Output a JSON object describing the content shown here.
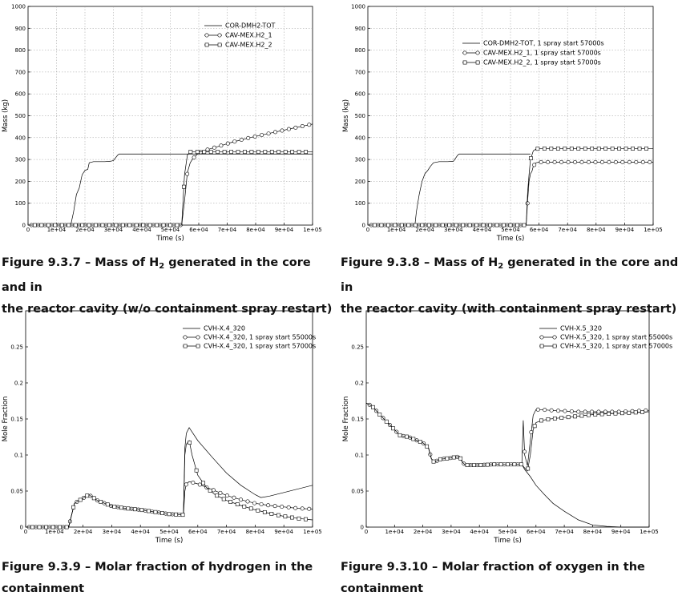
{
  "chart_data": [
    {
      "type": "line",
      "xlabel": "Time (s)",
      "ylabel": "Mass (kg)",
      "xlim": [
        0,
        100000
      ],
      "ylim": [
        0,
        1000
      ],
      "xticks": [
        0,
        10000,
        20000,
        30000,
        40000,
        50000,
        60000,
        70000,
        80000,
        90000,
        100000
      ],
      "xtick_labels": [
        "0",
        "1e+04",
        "2e+04",
        "3e+04",
        "4e+04",
        "5e+04",
        "6e+04",
        "7e+04",
        "8e+04",
        "9e+04",
        "1e+05"
      ],
      "yticks": [
        0,
        100,
        200,
        300,
        400,
        500,
        600,
        700,
        800,
        900,
        1000
      ],
      "ytick_labels": [
        "0",
        "100",
        "200",
        "300",
        "400",
        "500",
        "600",
        "700",
        "800",
        "900",
        "1000"
      ],
      "grid": true,
      "legend": "top-right",
      "series": [
        {
          "name": "COR-DMH2-TOT",
          "marker": "none",
          "x": [
            0,
            15000,
            16000,
            17000,
            18000,
            19000,
            20000,
            21000,
            21500,
            23000,
            25000,
            27000,
            29000,
            30000,
            31500,
            32000,
            34000,
            40000,
            60000,
            100000
          ],
          "y": [
            0,
            0,
            60,
            140,
            170,
            230,
            250,
            255,
            285,
            290,
            290,
            290,
            292,
            295,
            320,
            325,
            325,
            325,
            325,
            325
          ]
        },
        {
          "name": "CAV-MEX.H2_1",
          "marker": "circle",
          "x": [
            0,
            54000,
            55000,
            56000,
            57000,
            58000,
            60000,
            63000,
            67000,
            72000,
            78000,
            85000,
            92000,
            100000
          ],
          "y": [
            0,
            0,
            110,
            240,
            285,
            305,
            330,
            345,
            360,
            380,
            400,
            420,
            440,
            462
          ]
        },
        {
          "name": "CAV-MEX.H2_2",
          "marker": "square",
          "x": [
            0,
            54000,
            55000,
            56000,
            57000,
            58000,
            60000,
            65000,
            70000,
            80000,
            90000,
            100000
          ],
          "y": [
            0,
            0,
            230,
            320,
            335,
            335,
            335,
            335,
            335,
            335,
            335,
            335
          ]
        }
      ]
    },
    {
      "type": "line",
      "xlabel": "Time (s)",
      "ylabel": "Mass (kg)",
      "xlim": [
        0,
        100000
      ],
      "ylim": [
        0,
        1000
      ],
      "xticks": [
        0,
        10000,
        20000,
        30000,
        40000,
        50000,
        60000,
        70000,
        80000,
        90000,
        100000
      ],
      "xtick_labels": [
        "0",
        "1e+04",
        "2e+04",
        "3e+04",
        "4e+04",
        "5e+04",
        "6e+04",
        "7e+04",
        "8e+04",
        "9e+04",
        "1e+05"
      ],
      "yticks": [
        0,
        100,
        200,
        300,
        400,
        500,
        600,
        700,
        800,
        900,
        1000
      ],
      "ytick_labels": [
        "0",
        "100",
        "200",
        "300",
        "400",
        "500",
        "600",
        "700",
        "800",
        "900",
        "1000"
      ],
      "grid": true,
      "legend": "top-right",
      "series": [
        {
          "name": "COR-DMH2-TOT, 1 spray start 57000s",
          "marker": "none",
          "x": [
            0,
            16500,
            17000,
            18000,
            19000,
            20000,
            21000,
            22000,
            23000,
            25000,
            28000,
            30000,
            31500,
            32000,
            40000,
            57000
          ],
          "y": [
            0,
            0,
            60,
            140,
            200,
            235,
            250,
            270,
            285,
            290,
            290,
            292,
            320,
            325,
            325,
            325
          ]
        },
        {
          "name": "CAV-MEX.H2_1, 1 spray start 57000s",
          "marker": "circle",
          "x": [
            0,
            55500,
            56000,
            56500,
            57000,
            57500,
            58000,
            59000,
            60000,
            65000,
            70000,
            80000,
            90000,
            100000
          ],
          "y": [
            0,
            0,
            110,
            200,
            235,
            245,
            270,
            285,
            288,
            288,
            288,
            288,
            288,
            288
          ]
        },
        {
          "name": "CAV-MEX.H2_2, 1 spray start 57000s",
          "marker": "square",
          "x": [
            0,
            55500,
            56000,
            56500,
            57000,
            57500,
            58000,
            59000,
            60000,
            70000,
            80000,
            90000,
            100000
          ],
          "y": [
            0,
            0,
            150,
            230,
            300,
            320,
            340,
            348,
            350,
            350,
            350,
            350,
            350
          ]
        }
      ]
    },
    {
      "type": "line",
      "xlabel": "Time (s)",
      "ylabel": "Mole Fraction",
      "xlim": [
        0,
        100000
      ],
      "ylim": [
        0,
        0.3
      ],
      "xticks": [
        0,
        10000,
        20000,
        30000,
        40000,
        50000,
        60000,
        70000,
        80000,
        90000,
        100000
      ],
      "xtick_labels": [
        "0",
        "1e+04",
        "2e+04",
        "3e+04",
        "4e+04",
        "5e+04",
        "6e+04",
        "7e+04",
        "8e+04",
        "9e+04",
        "1e+05"
      ],
      "yticks": [
        0,
        0.05,
        0.1,
        0.15,
        0.2,
        0.25
      ],
      "ytick_labels": [
        "0",
        "0.05",
        "0.1",
        "0.15",
        "0.2",
        "0.25"
      ],
      "grid": false,
      "legend": "top-right",
      "series": [
        {
          "name": "CVH-X.4_320",
          "marker": "none",
          "x": [
            0,
            15000,
            17000,
            20000,
            22000,
            25000,
            30000,
            35000,
            40000,
            45000,
            50000,
            55000,
            55500,
            56000,
            57000,
            60000,
            65000,
            70000,
            75000,
            80000,
            82000,
            85000,
            90000,
            100000
          ],
          "y": [
            0,
            0,
            0.033,
            0.04,
            0.045,
            0.037,
            0.029,
            0.026,
            0.024,
            0.021,
            0.018,
            0.017,
            0.11,
            0.13,
            0.138,
            0.12,
            0.097,
            0.075,
            0.058,
            0.045,
            0.041,
            0.043,
            0.048,
            0.058
          ]
        },
        {
          "name": "CVH-X.4_320, 1 spray start 55000s",
          "marker": "circle",
          "x": [
            0,
            15000,
            17000,
            20000,
            22000,
            25000,
            30000,
            35000,
            40000,
            45000,
            50000,
            55000,
            55500,
            56000,
            57000,
            60000,
            65000,
            70000,
            75000,
            80000,
            85000,
            90000,
            95000,
            100000
          ],
          "y": [
            0,
            0,
            0.033,
            0.04,
            0.045,
            0.037,
            0.029,
            0.026,
            0.024,
            0.021,
            0.018,
            0.017,
            0.05,
            0.06,
            0.063,
            0.06,
            0.052,
            0.044,
            0.038,
            0.033,
            0.03,
            0.028,
            0.026,
            0.025
          ]
        },
        {
          "name": "CVH-X.4_320, 1 spray start 57000s",
          "marker": "square",
          "x": [
            0,
            15000,
            17000,
            20000,
            22000,
            25000,
            30000,
            35000,
            40000,
            45000,
            50000,
            55000,
            55500,
            56000,
            57000,
            58000,
            60000,
            63000,
            66000,
            70000,
            75000,
            80000,
            85000,
            90000,
            95000,
            100000
          ],
          "y": [
            0,
            0,
            0.033,
            0.04,
            0.045,
            0.037,
            0.029,
            0.026,
            0.024,
            0.021,
            0.018,
            0.017,
            0.1,
            0.115,
            0.12,
            0.1,
            0.072,
            0.055,
            0.045,
            0.037,
            0.03,
            0.024,
            0.019,
            0.015,
            0.012,
            0.01
          ]
        }
      ]
    },
    {
      "type": "line",
      "xlabel": "Time (s)",
      "ylabel": "Mole Fraction",
      "xlim": [
        0,
        100000
      ],
      "ylim": [
        0,
        0.3
      ],
      "xticks": [
        0,
        10000,
        20000,
        30000,
        40000,
        50000,
        60000,
        70000,
        80000,
        90000,
        100000
      ],
      "xtick_labels": [
        "0",
        "1e+04",
        "2e+04",
        "3e+04",
        "4e+04",
        "5e+04",
        "6e+04",
        "7e+04",
        "8e+04",
        "9e+04",
        "1e+05"
      ],
      "yticks": [
        0,
        0.05,
        0.1,
        0.15,
        0.2,
        0.25
      ],
      "ytick_labels": [
        "0",
        "0.05",
        "0.1",
        "0.15",
        "0.2",
        "0.25"
      ],
      "grid": false,
      "legend": "top-right",
      "series": [
        {
          "name": "CVH-X.5_320",
          "marker": "none",
          "x": [
            0,
            2000,
            5000,
            10000,
            12000,
            15000,
            18000,
            20000,
            22000,
            23000,
            24000,
            26000,
            30000,
            33000,
            34000,
            35000,
            40000,
            45000,
            50000,
            55000,
            56000,
            58000,
            60000,
            63000,
            66000,
            70000,
            75000,
            80000,
            85000,
            90000,
            100000
          ],
          "y": [
            0.172,
            0.168,
            0.155,
            0.135,
            0.127,
            0.125,
            0.12,
            0.117,
            0.11,
            0.095,
            0.09,
            0.094,
            0.096,
            0.098,
            0.09,
            0.086,
            0.086,
            0.087,
            0.087,
            0.087,
            0.08,
            0.07,
            0.058,
            0.045,
            0.033,
            0.022,
            0.01,
            0.003,
            0.001,
            0,
            0
          ]
        },
        {
          "name": "CVH-X.5_320, 1 spray start 55000s",
          "marker": "circle",
          "x": [
            0,
            2000,
            5000,
            10000,
            12000,
            15000,
            18000,
            20000,
            22000,
            23000,
            24000,
            26000,
            30000,
            33000,
            34000,
            35000,
            40000,
            45000,
            50000,
            55000,
            55500,
            56000,
            57000,
            58000,
            59000,
            60000,
            62000,
            65000,
            70000,
            75000,
            80000,
            85000,
            90000,
            95000,
            100000
          ],
          "y": [
            0.172,
            0.168,
            0.155,
            0.135,
            0.127,
            0.125,
            0.12,
            0.117,
            0.11,
            0.095,
            0.09,
            0.094,
            0.096,
            0.098,
            0.09,
            0.086,
            0.086,
            0.087,
            0.087,
            0.087,
            0.148,
            0.1,
            0.085,
            0.12,
            0.155,
            0.163,
            0.163,
            0.162,
            0.161,
            0.16,
            0.16,
            0.16,
            0.16,
            0.161,
            0.162
          ]
        },
        {
          "name": "CVH-X.5_320, 1 spray start 57000s",
          "marker": "square",
          "x": [
            0,
            2000,
            5000,
            10000,
            12000,
            15000,
            18000,
            20000,
            22000,
            23000,
            24000,
            26000,
            30000,
            33000,
            34000,
            35000,
            40000,
            45000,
            50000,
            55000,
            56000,
            57000,
            58000,
            59000,
            60000,
            62000,
            65000,
            70000,
            75000,
            80000,
            85000,
            90000,
            95000,
            100000
          ],
          "y": [
            0.172,
            0.168,
            0.155,
            0.135,
            0.127,
            0.125,
            0.12,
            0.117,
            0.11,
            0.095,
            0.09,
            0.094,
            0.096,
            0.098,
            0.09,
            0.086,
            0.086,
            0.087,
            0.087,
            0.087,
            0.082,
            0.078,
            0.1,
            0.135,
            0.145,
            0.148,
            0.15,
            0.152,
            0.154,
            0.156,
            0.157,
            0.158,
            0.159,
            0.16
          ]
        }
      ]
    }
  ],
  "captions": [
    {
      "pre": "Figure 9.3.7 – Mass of H",
      "sub": "2",
      "post": " generated in the core and in",
      "line2": "the reactor cavity (w/o containment spray restart)"
    },
    {
      "pre": "Figure 9.3.8 – Mass of H",
      "sub": "2",
      "post": " generated in the core and in",
      "line2": "the reactor cavity (with containment spray restart)"
    },
    {
      "pre": "Figure 9.3.9 – Molar fraction of hydrogen in the",
      "sub": "",
      "post": "",
      "line2": "containment"
    },
    {
      "pre": "Figure 9.3.10 – Molar fraction of oxygen in the",
      "sub": "",
      "post": "",
      "line2": "containment"
    }
  ]
}
